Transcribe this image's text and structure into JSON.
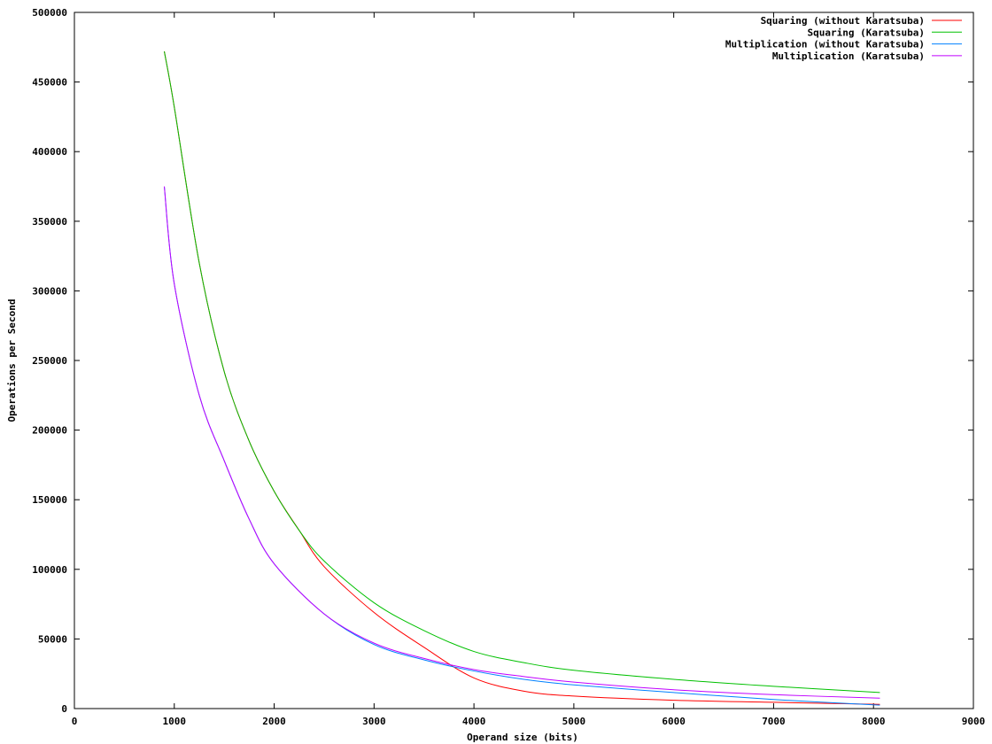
{
  "chart_data": {
    "type": "line",
    "title": "",
    "xlabel": "Operand size (bits)",
    "ylabel": "Operations per Second",
    "xlim": [
      0,
      9000
    ],
    "ylim": [
      0,
      500000
    ],
    "xticks": [
      "0",
      "1000",
      "2000",
      "3000",
      "4000",
      "5000",
      "6000",
      "7000",
      "8000",
      "9000"
    ],
    "yticks": [
      "0",
      "50000",
      "100000",
      "150000",
      "200000",
      "250000",
      "300000",
      "350000",
      "400000",
      "450000",
      "500000"
    ],
    "grid": false,
    "legend_position": "top-right",
    "series": [
      {
        "name": "Squaring (without Karatsuba)",
        "color": "#ff0000",
        "x": [
          900,
          1000,
          1250,
          1500,
          1750,
          2000,
          2250,
          2500,
          3000,
          3500,
          4000,
          4500,
          5000,
          6000,
          7000,
          8064
        ],
        "y": [
          472000,
          432000,
          320000,
          242000,
          192000,
          156000,
          128000,
          102000,
          69000,
          44000,
          22000,
          12500,
          9000,
          6000,
          4500,
          3000
        ]
      },
      {
        "name": "Squaring (Karatsuba)",
        "color": "#00c000",
        "x": [
          900,
          1000,
          1250,
          1500,
          1750,
          2000,
          2250,
          2500,
          3000,
          3500,
          4000,
          4500,
          5000,
          6000,
          7000,
          8064
        ],
        "y": [
          472000,
          432000,
          320000,
          242000,
          192000,
          156000,
          128000,
          106000,
          76000,
          56000,
          41000,
          33000,
          27500,
          21000,
          16000,
          11500
        ]
      },
      {
        "name": "Multiplication (without Karatsuba)",
        "color": "#0080ff",
        "x": [
          900,
          1000,
          1250,
          1500,
          1750,
          2000,
          2500,
          3000,
          3500,
          4000,
          4500,
          5000,
          6000,
          7000,
          8064
        ],
        "y": [
          375000,
          305000,
          225000,
          178000,
          136000,
          104000,
          68000,
          46000,
          35000,
          27000,
          21000,
          17000,
          11500,
          6500,
          2500
        ]
      },
      {
        "name": "Multiplication (Karatsuba)",
        "color": "#c000ff",
        "x": [
          900,
          1000,
          1250,
          1500,
          1750,
          2000,
          2500,
          3000,
          3500,
          4000,
          4500,
          5000,
          6000,
          7000,
          8064
        ],
        "y": [
          375000,
          305000,
          225000,
          178000,
          136000,
          104000,
          68000,
          47000,
          36000,
          28000,
          23000,
          19000,
          13500,
          10000,
          7500
        ]
      }
    ]
  }
}
